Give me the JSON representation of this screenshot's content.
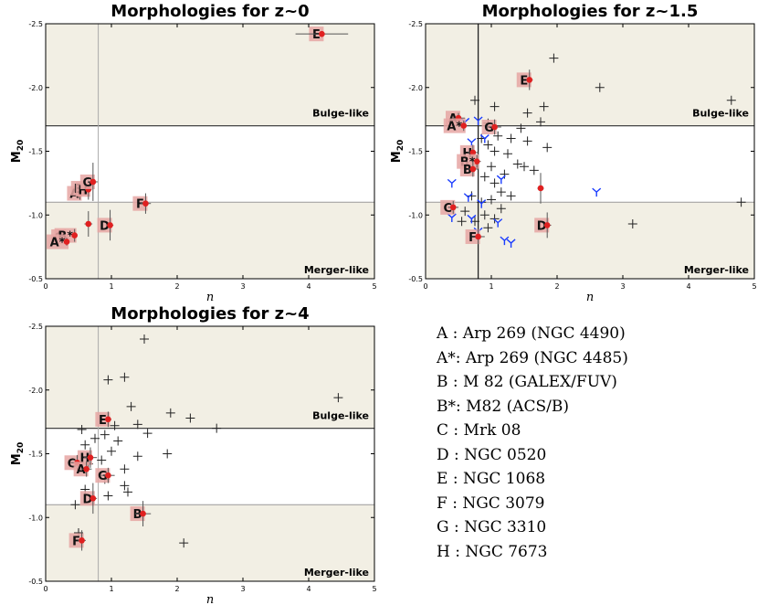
{
  "chart_data": [
    {
      "type": "scatter",
      "title": "Morphologies for z~0",
      "xlabel": "n",
      "ylabel": "M",
      "ylabel_sub": "20",
      "xlim": [
        0,
        5
      ],
      "ylim": [
        -0.5,
        -2.5
      ],
      "xticks": [
        0,
        1,
        2,
        3,
        4,
        5
      ],
      "yticks": [
        -0.5,
        -1.0,
        -1.5,
        -2.0,
        -2.5
      ],
      "region_labels": {
        "upper": "Bulge-like",
        "lower": "Merger-like"
      },
      "hlines": [
        -1.7,
        -1.1
      ],
      "vline": 0.8,
      "labeled_points": [
        {
          "label": "E",
          "x": 4.2,
          "y": -2.42,
          "xerr": 0.4,
          "yerr": 0.02
        },
        {
          "label": "A",
          "x": 0.52,
          "y": -1.17,
          "xerr": 0.05,
          "yerr": 0.05
        },
        {
          "label": "B",
          "x": 0.58,
          "y": -1.21,
          "xerr": 0.05,
          "yerr": 0.05
        },
        {
          "label": "H",
          "x": 0.65,
          "y": -1.2,
          "xerr": 0.05,
          "yerr": 0.08
        },
        {
          "label": "G",
          "x": 0.72,
          "y": -1.26,
          "xerr": 0.07,
          "yerr": 0.15
        },
        {
          "label": "C",
          "x": 0.28,
          "y": -0.83,
          "xerr": 0.04,
          "yerr": 0.03
        },
        {
          "label": "B*",
          "x": 0.44,
          "y": -0.84,
          "xerr": 0.04,
          "yerr": 0.05
        },
        {
          "label": "A*",
          "x": 0.32,
          "y": -0.79,
          "xerr": 0.04,
          "yerr": 0.03
        },
        {
          "label": "D",
          "x": 0.98,
          "y": -0.92,
          "xerr": 0.05,
          "yerr": 0.12
        },
        {
          "label": "F",
          "x": 1.52,
          "y": -1.09,
          "xerr": 0.08,
          "yerr": 0.08
        },
        {
          "label": "",
          "x": 0.65,
          "y": -0.93,
          "xerr": 0.06,
          "yerr": 0.1
        }
      ],
      "plus_points": [],
      "y_points": []
    },
    {
      "type": "scatter",
      "title": "Morphologies for z~1.5",
      "xlabel": "n",
      "ylabel": "M",
      "ylabel_sub": "20",
      "xlim": [
        0,
        5
      ],
      "ylim": [
        -0.5,
        -2.5
      ],
      "xticks": [
        0,
        1,
        2,
        3,
        4,
        5
      ],
      "yticks": [
        -0.5,
        -1.0,
        -1.5,
        -2.0,
        -2.5
      ],
      "region_labels": {
        "upper": "Bulge-like",
        "lower": "Merger-like"
      },
      "hlines": [
        -1.7,
        -1.1
      ],
      "vline": 0.8,
      "labeled_points": [
        {
          "label": "E",
          "x": 1.58,
          "y": -2.06,
          "xerr": 0.05,
          "yerr": 0.08
        },
        {
          "label": "A",
          "x": 0.5,
          "y": -1.76,
          "xerr": 0.1,
          "yerr": 0.04
        },
        {
          "label": "A*",
          "x": 0.58,
          "y": -1.7,
          "xerr": 0.06,
          "yerr": 0.04
        },
        {
          "label": "G",
          "x": 1.05,
          "y": -1.69,
          "xerr": 0.1,
          "yerr": 0.06
        },
        {
          "label": "H",
          "x": 0.72,
          "y": -1.49,
          "xerr": 0.08,
          "yerr": 0.06
        },
        {
          "label": "B*",
          "x": 0.78,
          "y": -1.42,
          "xerr": 0.06,
          "yerr": 0.05
        },
        {
          "label": "B",
          "x": 0.72,
          "y": -1.36,
          "xerr": 0.08,
          "yerr": 0.06
        },
        {
          "label": "C",
          "x": 0.42,
          "y": -1.06,
          "xerr": 0.08,
          "yerr": 0.05
        },
        {
          "label": "F",
          "x": 0.8,
          "y": -0.83,
          "xerr": 0.1,
          "yerr": 0.06
        },
        {
          "label": "D",
          "x": 1.85,
          "y": -0.92,
          "xerr": 0.06,
          "yerr": 0.1
        },
        {
          "label": "",
          "x": 1.75,
          "y": -1.21,
          "xerr": 0.05,
          "yerr": 0.12
        }
      ],
      "plus_points": [
        [
          1.95,
          -2.23
        ],
        [
          2.65,
          -2.0
        ],
        [
          4.65,
          -1.9
        ],
        [
          0.75,
          -1.9
        ],
        [
          1.05,
          -1.85
        ],
        [
          1.8,
          -1.85
        ],
        [
          1.55,
          -1.8
        ],
        [
          1.75,
          -1.73
        ],
        [
          0.95,
          -1.72
        ],
        [
          1.45,
          -1.68
        ],
        [
          1.1,
          -1.62
        ],
        [
          1.3,
          -1.6
        ],
        [
          1.55,
          -1.58
        ],
        [
          1.85,
          -1.53
        ],
        [
          0.85,
          -1.6
        ],
        [
          0.95,
          -1.55
        ],
        [
          1.05,
          -1.5
        ],
        [
          1.25,
          -1.48
        ],
        [
          1.4,
          -1.4
        ],
        [
          1.5,
          -1.38
        ],
        [
          1.65,
          -1.35
        ],
        [
          1.0,
          -1.38
        ],
        [
          1.2,
          -1.32
        ],
        [
          0.9,
          -1.3
        ],
        [
          1.05,
          -1.25
        ],
        [
          1.15,
          -1.18
        ],
        [
          1.3,
          -1.15
        ],
        [
          1.0,
          -1.12
        ],
        [
          0.85,
          -1.1
        ],
        [
          0.7,
          -1.15
        ],
        [
          1.15,
          -1.05
        ],
        [
          0.9,
          -1.0
        ],
        [
          0.75,
          -0.95
        ],
        [
          1.05,
          -0.97
        ],
        [
          0.95,
          -0.9
        ],
        [
          4.8,
          -1.1
        ],
        [
          3.15,
          -0.93
        ],
        [
          0.55,
          -0.95
        ],
        [
          0.6,
          -1.03
        ]
      ],
      "y_points": [
        [
          0.8,
          -1.74
        ],
        [
          0.6,
          -1.73
        ],
        [
          0.7,
          -1.57
        ],
        [
          0.9,
          -1.6
        ],
        [
          0.4,
          -1.25
        ],
        [
          1.15,
          -1.28
        ],
        [
          0.65,
          -1.14
        ],
        [
          0.85,
          -1.09
        ],
        [
          0.4,
          -0.98
        ],
        [
          0.7,
          -0.97
        ],
        [
          1.1,
          -0.94
        ],
        [
          0.8,
          -0.87
        ],
        [
          1.2,
          -0.8
        ],
        [
          1.3,
          -0.78
        ],
        [
          2.6,
          -1.18
        ]
      ]
    },
    {
      "type": "scatter",
      "title": "Morphologies for z~4",
      "xlabel": "n",
      "ylabel": "M",
      "ylabel_sub": "20",
      "xlim": [
        0,
        5
      ],
      "ylim": [
        -0.5,
        -2.5
      ],
      "xticks": [
        0,
        1,
        2,
        3,
        4,
        5
      ],
      "yticks": [
        -0.5,
        -1.0,
        -1.5,
        -2.0,
        -2.5
      ],
      "region_labels": {
        "upper": "Bulge-like",
        "lower": "Merger-like"
      },
      "hlines": [
        -1.7,
        -1.1
      ],
      "vline": 0.8,
      "labeled_points": [
        {
          "label": "E",
          "x": 0.95,
          "y": -1.77,
          "xerr": 0.05,
          "yerr": 0.06
        },
        {
          "label": "H",
          "x": 0.68,
          "y": -1.47,
          "xerr": 0.1,
          "yerr": 0.08
        },
        {
          "label": "C",
          "x": 0.48,
          "y": -1.43,
          "xerr": 0.1,
          "yerr": 0.06
        },
        {
          "label": "A",
          "x": 0.62,
          "y": -1.38,
          "xerr": 0.08,
          "yerr": 0.06
        },
        {
          "label": "G",
          "x": 0.95,
          "y": -1.33,
          "xerr": 0.1,
          "yerr": 0.06
        },
        {
          "label": "D",
          "x": 0.72,
          "y": -1.15,
          "xerr": 0.06,
          "yerr": 0.12
        },
        {
          "label": "B",
          "x": 1.48,
          "y": -1.03,
          "xerr": 0.12,
          "yerr": 0.1
        },
        {
          "label": "F",
          "x": 0.55,
          "y": -0.82,
          "xerr": 0.06,
          "yerr": 0.08
        }
      ],
      "plus_points": [
        [
          1.5,
          -2.4
        ],
        [
          0.95,
          -2.08
        ],
        [
          1.2,
          -2.1
        ],
        [
          1.3,
          -1.87
        ],
        [
          4.45,
          -1.94
        ],
        [
          1.9,
          -1.82
        ],
        [
          2.2,
          -1.78
        ],
        [
          1.05,
          -1.72
        ],
        [
          1.4,
          -1.73
        ],
        [
          1.55,
          -1.66
        ],
        [
          2.6,
          -1.7
        ],
        [
          0.55,
          -1.69
        ],
        [
          0.9,
          -1.65
        ],
        [
          0.75,
          -1.62
        ],
        [
          1.1,
          -1.6
        ],
        [
          0.6,
          -1.57
        ],
        [
          1.0,
          -1.52
        ],
        [
          1.4,
          -1.48
        ],
        [
          1.85,
          -1.5
        ],
        [
          0.65,
          -1.42
        ],
        [
          1.2,
          -1.38
        ],
        [
          0.9,
          -1.3
        ],
        [
          1.2,
          -1.25
        ],
        [
          0.6,
          -1.22
        ],
        [
          0.95,
          -1.17
        ],
        [
          1.25,
          -1.2
        ],
        [
          0.45,
          -1.1
        ],
        [
          0.5,
          -0.88
        ],
        [
          2.1,
          -0.8
        ],
        [
          0.85,
          -1.45
        ]
      ],
      "y_points": []
    }
  ],
  "legend": [
    "A : Arp 269 (NGC 4490)",
    "A*: Arp 269 (NGC 4485)",
    "B : M 82 (GALEX/FUV)",
    "B*: M82 (ACS/B)",
    "C : Mrk 08",
    "D : NGC 0520",
    "E : NGC 1068",
    "F : NGC 3079",
    "G : NGC 3310",
    "H : NGC 7673"
  ],
  "colors": {
    "region_fill": "#f2efe4",
    "label_bg": "#e6a6a3",
    "point": "#e02020",
    "blue_marker": "#1a3cff",
    "line": "#000000"
  }
}
